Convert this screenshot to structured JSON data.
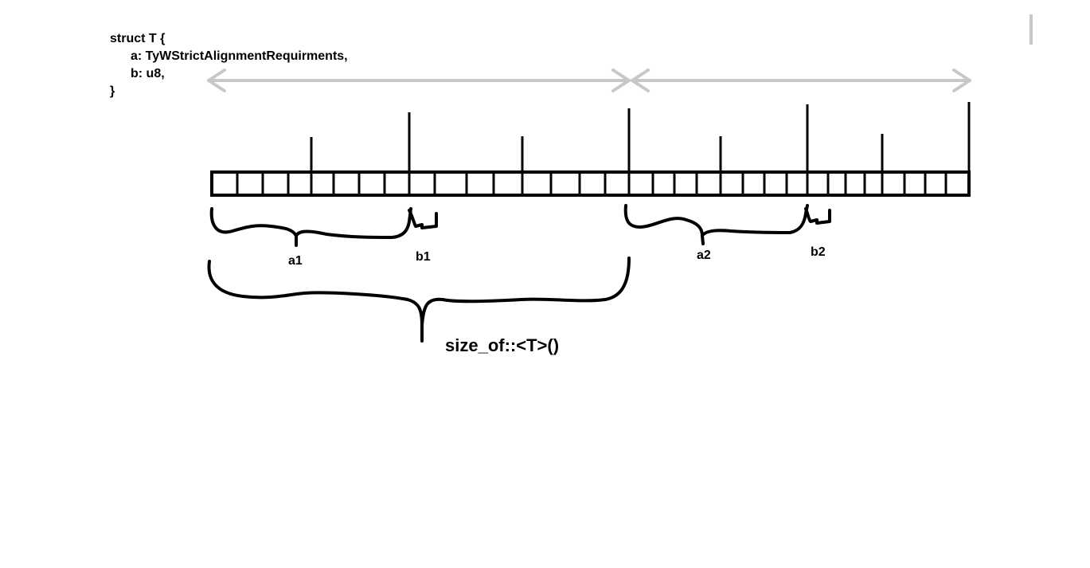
{
  "code": {
    "line1": "struct T {",
    "line2": "a: TyWStrictAlignmentRequirments,",
    "line3": "b: u8,",
    "line4": "}"
  },
  "labels": {
    "a1": "a1",
    "b1": "b1",
    "a2": "a2",
    "b2": "b2",
    "size": "size_of::<T>()"
  },
  "colors": {
    "ink": "#000000",
    "arrow": "#c8c8c8",
    "background": "#ffffff"
  }
}
